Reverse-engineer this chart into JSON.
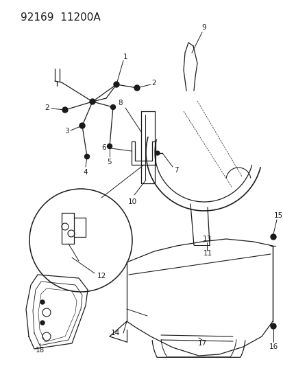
{
  "title": "92169  11200A",
  "bg_color": "#ffffff",
  "line_color": "#1a1a1a",
  "fig_width": 4.14,
  "fig_height": 5.33,
  "dpi": 100
}
